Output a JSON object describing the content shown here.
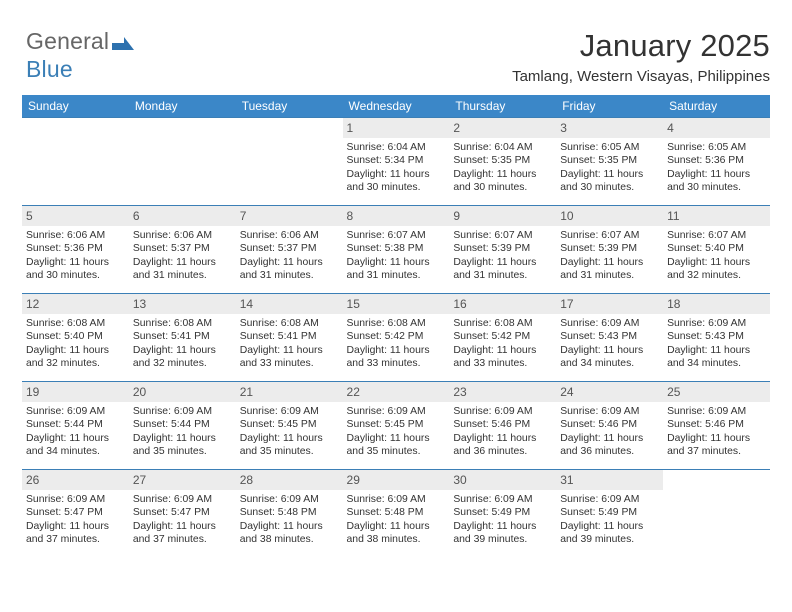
{
  "logo": {
    "text_a": "General",
    "text_b": "Blue",
    "mark_color": "#2d71ae",
    "logo_gray": "#666666"
  },
  "header": {
    "title": "January 2025",
    "subtitle": "Tamlang, Western Visayas, Philippines"
  },
  "colors": {
    "header_row_bg": "#3b87c8",
    "header_row_text": "#ffffff",
    "row_divider": "#3b7fb6",
    "daynum_bg": "#ececec",
    "daynum_text": "#555555",
    "body_text": "#333333"
  },
  "dow": [
    "Sunday",
    "Monday",
    "Tuesday",
    "Wednesday",
    "Thursday",
    "Friday",
    "Saturday"
  ],
  "weeks": [
    [
      null,
      null,
      null,
      {
        "n": "1",
        "sr": "Sunrise: 6:04 AM",
        "ss": "Sunset: 5:34 PM",
        "dl1": "Daylight: 11 hours",
        "dl2": "and 30 minutes."
      },
      {
        "n": "2",
        "sr": "Sunrise: 6:04 AM",
        "ss": "Sunset: 5:35 PM",
        "dl1": "Daylight: 11 hours",
        "dl2": "and 30 minutes."
      },
      {
        "n": "3",
        "sr": "Sunrise: 6:05 AM",
        "ss": "Sunset: 5:35 PM",
        "dl1": "Daylight: 11 hours",
        "dl2": "and 30 minutes."
      },
      {
        "n": "4",
        "sr": "Sunrise: 6:05 AM",
        "ss": "Sunset: 5:36 PM",
        "dl1": "Daylight: 11 hours",
        "dl2": "and 30 minutes."
      }
    ],
    [
      {
        "n": "5",
        "sr": "Sunrise: 6:06 AM",
        "ss": "Sunset: 5:36 PM",
        "dl1": "Daylight: 11 hours",
        "dl2": "and 30 minutes."
      },
      {
        "n": "6",
        "sr": "Sunrise: 6:06 AM",
        "ss": "Sunset: 5:37 PM",
        "dl1": "Daylight: 11 hours",
        "dl2": "and 31 minutes."
      },
      {
        "n": "7",
        "sr": "Sunrise: 6:06 AM",
        "ss": "Sunset: 5:37 PM",
        "dl1": "Daylight: 11 hours",
        "dl2": "and 31 minutes."
      },
      {
        "n": "8",
        "sr": "Sunrise: 6:07 AM",
        "ss": "Sunset: 5:38 PM",
        "dl1": "Daylight: 11 hours",
        "dl2": "and 31 minutes."
      },
      {
        "n": "9",
        "sr": "Sunrise: 6:07 AM",
        "ss": "Sunset: 5:39 PM",
        "dl1": "Daylight: 11 hours",
        "dl2": "and 31 minutes."
      },
      {
        "n": "10",
        "sr": "Sunrise: 6:07 AM",
        "ss": "Sunset: 5:39 PM",
        "dl1": "Daylight: 11 hours",
        "dl2": "and 31 minutes."
      },
      {
        "n": "11",
        "sr": "Sunrise: 6:07 AM",
        "ss": "Sunset: 5:40 PM",
        "dl1": "Daylight: 11 hours",
        "dl2": "and 32 minutes."
      }
    ],
    [
      {
        "n": "12",
        "sr": "Sunrise: 6:08 AM",
        "ss": "Sunset: 5:40 PM",
        "dl1": "Daylight: 11 hours",
        "dl2": "and 32 minutes."
      },
      {
        "n": "13",
        "sr": "Sunrise: 6:08 AM",
        "ss": "Sunset: 5:41 PM",
        "dl1": "Daylight: 11 hours",
        "dl2": "and 32 minutes."
      },
      {
        "n": "14",
        "sr": "Sunrise: 6:08 AM",
        "ss": "Sunset: 5:41 PM",
        "dl1": "Daylight: 11 hours",
        "dl2": "and 33 minutes."
      },
      {
        "n": "15",
        "sr": "Sunrise: 6:08 AM",
        "ss": "Sunset: 5:42 PM",
        "dl1": "Daylight: 11 hours",
        "dl2": "and 33 minutes."
      },
      {
        "n": "16",
        "sr": "Sunrise: 6:08 AM",
        "ss": "Sunset: 5:42 PM",
        "dl1": "Daylight: 11 hours",
        "dl2": "and 33 minutes."
      },
      {
        "n": "17",
        "sr": "Sunrise: 6:09 AM",
        "ss": "Sunset: 5:43 PM",
        "dl1": "Daylight: 11 hours",
        "dl2": "and 34 minutes."
      },
      {
        "n": "18",
        "sr": "Sunrise: 6:09 AM",
        "ss": "Sunset: 5:43 PM",
        "dl1": "Daylight: 11 hours",
        "dl2": "and 34 minutes."
      }
    ],
    [
      {
        "n": "19",
        "sr": "Sunrise: 6:09 AM",
        "ss": "Sunset: 5:44 PM",
        "dl1": "Daylight: 11 hours",
        "dl2": "and 34 minutes."
      },
      {
        "n": "20",
        "sr": "Sunrise: 6:09 AM",
        "ss": "Sunset: 5:44 PM",
        "dl1": "Daylight: 11 hours",
        "dl2": "and 35 minutes."
      },
      {
        "n": "21",
        "sr": "Sunrise: 6:09 AM",
        "ss": "Sunset: 5:45 PM",
        "dl1": "Daylight: 11 hours",
        "dl2": "and 35 minutes."
      },
      {
        "n": "22",
        "sr": "Sunrise: 6:09 AM",
        "ss": "Sunset: 5:45 PM",
        "dl1": "Daylight: 11 hours",
        "dl2": "and 35 minutes."
      },
      {
        "n": "23",
        "sr": "Sunrise: 6:09 AM",
        "ss": "Sunset: 5:46 PM",
        "dl1": "Daylight: 11 hours",
        "dl2": "and 36 minutes."
      },
      {
        "n": "24",
        "sr": "Sunrise: 6:09 AM",
        "ss": "Sunset: 5:46 PM",
        "dl1": "Daylight: 11 hours",
        "dl2": "and 36 minutes."
      },
      {
        "n": "25",
        "sr": "Sunrise: 6:09 AM",
        "ss": "Sunset: 5:46 PM",
        "dl1": "Daylight: 11 hours",
        "dl2": "and 37 minutes."
      }
    ],
    [
      {
        "n": "26",
        "sr": "Sunrise: 6:09 AM",
        "ss": "Sunset: 5:47 PM",
        "dl1": "Daylight: 11 hours",
        "dl2": "and 37 minutes."
      },
      {
        "n": "27",
        "sr": "Sunrise: 6:09 AM",
        "ss": "Sunset: 5:47 PM",
        "dl1": "Daylight: 11 hours",
        "dl2": "and 37 minutes."
      },
      {
        "n": "28",
        "sr": "Sunrise: 6:09 AM",
        "ss": "Sunset: 5:48 PM",
        "dl1": "Daylight: 11 hours",
        "dl2": "and 38 minutes."
      },
      {
        "n": "29",
        "sr": "Sunrise: 6:09 AM",
        "ss": "Sunset: 5:48 PM",
        "dl1": "Daylight: 11 hours",
        "dl2": "and 38 minutes."
      },
      {
        "n": "30",
        "sr": "Sunrise: 6:09 AM",
        "ss": "Sunset: 5:49 PM",
        "dl1": "Daylight: 11 hours",
        "dl2": "and 39 minutes."
      },
      {
        "n": "31",
        "sr": "Sunrise: 6:09 AM",
        "ss": "Sunset: 5:49 PM",
        "dl1": "Daylight: 11 hours",
        "dl2": "and 39 minutes."
      },
      null
    ]
  ]
}
